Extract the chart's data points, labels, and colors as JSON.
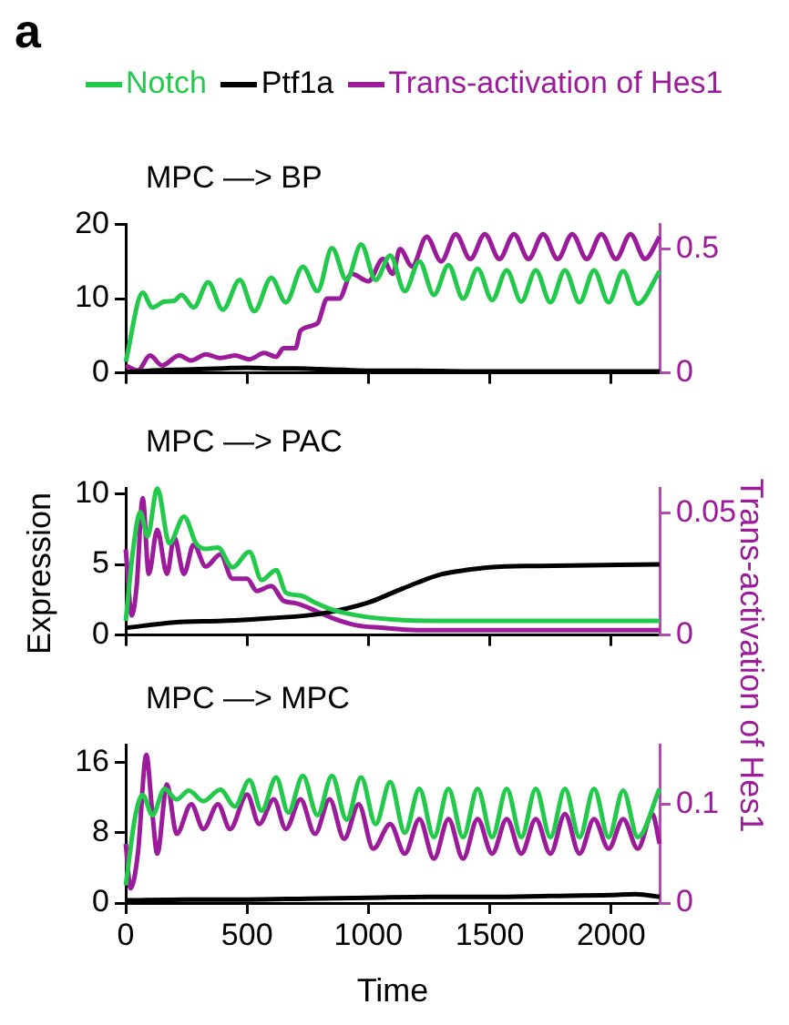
{
  "chart_data": [
    {
      "type": "line",
      "title": "MPC —> BP",
      "annotations": [
        "a"
      ],
      "legend": "top",
      "grid": false,
      "tick_labels": "y",
      "xlim": [
        0,
        2200
      ],
      "xticks": [
        0,
        500,
        1000,
        1500,
        2000
      ],
      "ylim": [
        0,
        20
      ],
      "yticks": [
        0,
        10,
        20
      ],
      "y2lim": [
        0,
        0.6
      ],
      "y2ticks": [
        0,
        0.5
      ],
      "series": [
        {
          "name": "Notch",
          "color": "#22c94a",
          "x": [
            0,
            70,
            110,
            160,
            200,
            230,
            280,
            340,
            400,
            470,
            530,
            600,
            660,
            730,
            790,
            850,
            910,
            970,
            1030,
            1090,
            1150,
            1210,
            1270,
            1330,
            1390,
            1450,
            1510,
            1570,
            1630,
            1690,
            1750,
            1810,
            1870,
            1930,
            1990,
            2050,
            2110,
            2200
          ],
          "values": [
            1.5,
            10.8,
            8.8,
            9.6,
            9.7,
            10.5,
            8.8,
            12.2,
            8.5,
            12.5,
            8.3,
            12.8,
            9.5,
            14.3,
            11,
            16.8,
            12.5,
            17.3,
            12.5,
            15.8,
            11,
            15,
            10.5,
            14.5,
            10,
            14,
            9.8,
            13.8,
            9.6,
            13.8,
            9.5,
            13.8,
            9.5,
            13.8,
            9.5,
            13.7,
            9.3,
            13.7
          ]
        },
        {
          "name": "Ptf1a",
          "color": "#000000",
          "x": [
            0,
            100,
            200,
            300,
            400,
            500,
            600,
            700,
            800,
            900,
            1000,
            1200,
            1400,
            1600,
            1800,
            2000,
            2200
          ],
          "values": [
            0.1,
            0.3,
            0.4,
            0.5,
            0.6,
            0.7,
            0.6,
            0.6,
            0.5,
            0.4,
            0.3,
            0.3,
            0.2,
            0.2,
            0.2,
            0.2,
            0.2
          ]
        },
        {
          "name": "Trans-activation of Hes1",
          "color": "#9b1b9b",
          "axis": "y2",
          "x": [
            0,
            50,
            100,
            150,
            220,
            270,
            330,
            390,
            450,
            510,
            570,
            620,
            650,
            700,
            720,
            790,
            830,
            880,
            930,
            1000,
            1060,
            1100,
            1130,
            1180,
            1240,
            1300,
            1360,
            1420,
            1480,
            1540,
            1600,
            1660,
            1720,
            1780,
            1840,
            1900,
            1960,
            2020,
            2080,
            2140,
            2200
          ],
          "values": [
            0.03,
            0.01,
            0.07,
            0.03,
            0.07,
            0.05,
            0.075,
            0.06,
            0.07,
            0.055,
            0.08,
            0.065,
            0.1,
            0.1,
            0.17,
            0.2,
            0.3,
            0.3,
            0.4,
            0.37,
            0.46,
            0.4,
            0.5,
            0.43,
            0.55,
            0.45,
            0.56,
            0.46,
            0.56,
            0.46,
            0.56,
            0.46,
            0.56,
            0.46,
            0.56,
            0.46,
            0.56,
            0.46,
            0.56,
            0.46,
            0.55
          ]
        }
      ]
    },
    {
      "type": "line",
      "title": "MPC —> PAC",
      "ylabel": "Expression",
      "y2label": "Trans-activation of Hes1",
      "grid": false,
      "tick_labels": "y",
      "xlim": [
        0,
        2200
      ],
      "xticks": [
        0,
        500,
        1000,
        1500,
        2000
      ],
      "ylim": [
        0,
        10.4
      ],
      "yticks": [
        0,
        5,
        10
      ],
      "y2lim": [
        0,
        0.06
      ],
      "y2ticks": [
        0,
        0.05
      ],
      "series": [
        {
          "color": "#22c94a",
          "x": [
            0,
            30,
            60,
            90,
            130,
            180,
            240,
            290,
            330,
            380,
            440,
            510,
            560,
            620,
            660,
            720,
            780,
            850,
            950,
            1100,
            1300,
            2200
          ],
          "values": [
            1,
            6,
            8.7,
            7,
            10.4,
            6.5,
            8.4,
            6.5,
            6.1,
            6.2,
            4.8,
            5.9,
            3.9,
            4.6,
            3,
            2.8,
            2.3,
            1.8,
            1.4,
            1.1,
            1,
            1
          ]
        },
        {
          "color": "#000000",
          "x": [
            0,
            200,
            400,
            600,
            800,
            1000,
            1100,
            1200,
            1300,
            1400,
            1500,
            1700,
            2200
          ],
          "values": [
            0.5,
            0.9,
            1,
            1.2,
            1.5,
            2.3,
            3,
            3.7,
            4.3,
            4.6,
            4.8,
            4.9,
            5
          ]
        },
        {
          "color": "#9b1b9b",
          "axis": "y2",
          "x": [
            0,
            25,
            45,
            70,
            95,
            130,
            170,
            200,
            240,
            280,
            330,
            390,
            440,
            500,
            540,
            600,
            650,
            700,
            780,
            850,
            950,
            1050,
            1200,
            2200
          ],
          "values": [
            0.035,
            0.008,
            0.02,
            0.056,
            0.025,
            0.043,
            0.025,
            0.04,
            0.025,
            0.037,
            0.028,
            0.033,
            0.023,
            0.023,
            0.018,
            0.02,
            0.014,
            0.013,
            0.01,
            0.007,
            0.004,
            0.003,
            0.002,
            0.002
          ]
        }
      ]
    },
    {
      "type": "line",
      "title": "MPC —> MPC",
      "xlabel": "Time",
      "grid": false,
      "xlim": [
        0,
        2200
      ],
      "xticks": [
        0,
        500,
        1000,
        1500,
        2000
      ],
      "ylim": [
        0,
        18
      ],
      "yticks": [
        0,
        8,
        16
      ],
      "y2lim": [
        0,
        0.16
      ],
      "y2ticks": [
        0,
        0.1
      ],
      "series": [
        {
          "color": "#22c94a",
          "x": [
            0,
            40,
            70,
            110,
            160,
            210,
            260,
            320,
            390,
            450,
            510,
            560,
            620,
            670,
            730,
            790,
            850,
            910,
            970,
            1030,
            1090,
            1150,
            1210,
            1270,
            1330,
            1390,
            1450,
            1510,
            1570,
            1630,
            1690,
            1750,
            1810,
            1870,
            1930,
            1990,
            2050,
            2110,
            2200
          ],
          "values": [
            2,
            10,
            12.3,
            10,
            13,
            11.8,
            12.8,
            11.6,
            12.9,
            11,
            14,
            10.5,
            14.3,
            10.3,
            14.5,
            10,
            14.5,
            9.5,
            14.3,
            9,
            13.8,
            8,
            13,
            7.5,
            13,
            7.5,
            13,
            7.5,
            13,
            7.5,
            13,
            7.5,
            13,
            7.5,
            13,
            7.5,
            12.8,
            7.5,
            13
          ]
        },
        {
          "color": "#000000",
          "x": [
            0,
            250,
            500,
            750,
            1000,
            1250,
            1500,
            1750,
            2000,
            2100,
            2200
          ],
          "values": [
            0.3,
            0.4,
            0.4,
            0.5,
            0.6,
            0.7,
            0.7,
            0.8,
            0.9,
            1,
            0.7
          ]
        },
        {
          "color": "#9b1b9b",
          "axis": "y2",
          "x": [
            0,
            20,
            50,
            85,
            110,
            130,
            170,
            210,
            270,
            320,
            380,
            430,
            500,
            550,
            610,
            660,
            720,
            780,
            840,
            900,
            960,
            1020,
            1090,
            1150,
            1210,
            1270,
            1330,
            1390,
            1450,
            1510,
            1570,
            1630,
            1690,
            1750,
            1810,
            1870,
            1930,
            1990,
            2050,
            2110,
            2170,
            2200
          ],
          "values": [
            0.06,
            0.015,
            0.05,
            0.15,
            0.09,
            0.05,
            0.12,
            0.07,
            0.1,
            0.075,
            0.1,
            0.075,
            0.11,
            0.08,
            0.105,
            0.075,
            0.105,
            0.07,
            0.105,
            0.065,
            0.1,
            0.055,
            0.08,
            0.05,
            0.085,
            0.045,
            0.085,
            0.045,
            0.085,
            0.05,
            0.085,
            0.05,
            0.085,
            0.05,
            0.09,
            0.05,
            0.085,
            0.055,
            0.085,
            0.055,
            0.09,
            0.06
          ]
        }
      ]
    }
  ]
}
